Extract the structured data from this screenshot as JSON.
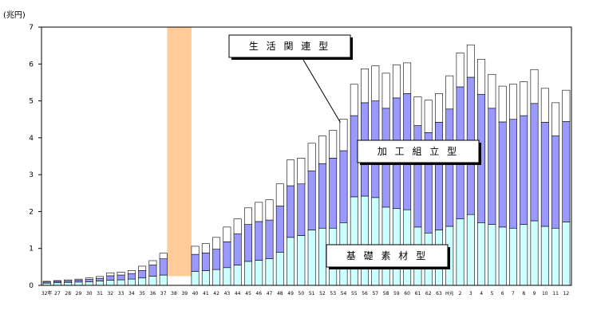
{
  "chart_data": {
    "type": "bar",
    "stacked": true,
    "unit_label": "(兆円)",
    "ylim": [
      0,
      7
    ],
    "yticks": [
      "0",
      "1",
      "2",
      "3",
      "4",
      "5",
      "6",
      "7"
    ],
    "grid": false,
    "legend": "none",
    "categories": [
      "32年",
      "27",
      "28",
      "29",
      "30",
      "31",
      "32",
      "33",
      "34",
      "35",
      "36",
      "37",
      "38",
      "39",
      "40",
      "41",
      "42",
      "43",
      "44",
      "45",
      "46",
      "47",
      "48",
      "49",
      "50",
      "51",
      "52",
      "53",
      "54",
      "55",
      "56",
      "57",
      "58",
      "59",
      "60",
      "61",
      "62",
      "63",
      "H元",
      "2",
      "3",
      "4",
      "5",
      "6",
      "7",
      "8",
      "9",
      "10",
      "11",
      "12"
    ],
    "series": [
      {
        "name": "基礎素材型",
        "color": "#ccffff",
        "values": [
          0.06,
          0.07,
          0.08,
          0.09,
          0.1,
          0.12,
          0.14,
          0.15,
          0.17,
          0.2,
          0.25,
          0.28,
          null,
          null,
          0.38,
          0.4,
          0.43,
          0.48,
          0.55,
          0.65,
          0.68,
          0.72,
          0.9,
          1.3,
          1.35,
          1.5,
          1.55,
          1.55,
          1.7,
          2.4,
          2.42,
          2.38,
          2.12,
          2.08,
          2.05,
          1.58,
          1.42,
          1.5,
          1.6,
          1.8,
          1.92,
          1.7,
          1.65,
          1.58,
          1.55,
          1.65,
          1.75,
          1.6,
          1.55,
          1.72
        ]
      },
      {
        "name": "加工組立型",
        "color": "#9999ff",
        "values": [
          0.03,
          0.04,
          0.04,
          0.05,
          0.06,
          0.07,
          0.12,
          0.13,
          0.15,
          0.2,
          0.3,
          0.44,
          null,
          null,
          0.46,
          0.48,
          0.55,
          0.7,
          0.85,
          1.0,
          1.05,
          1.05,
          1.25,
          1.4,
          1.4,
          1.6,
          1.75,
          1.9,
          1.95,
          2.2,
          2.53,
          2.62,
          2.68,
          3.0,
          3.15,
          2.75,
          2.72,
          2.92,
          3.18,
          3.58,
          3.72,
          3.48,
          3.15,
          2.85,
          2.95,
          2.95,
          3.18,
          2.82,
          2.5,
          2.72
        ]
      },
      {
        "name": "生活関連型",
        "color": "#ffffff",
        "values": [
          0.02,
          0.02,
          0.03,
          0.03,
          0.04,
          0.05,
          0.08,
          0.08,
          0.08,
          0.12,
          0.12,
          0.15,
          null,
          null,
          0.22,
          0.25,
          0.32,
          0.4,
          0.4,
          0.45,
          0.52,
          0.55,
          0.6,
          0.7,
          0.7,
          0.75,
          0.75,
          0.75,
          0.85,
          0.85,
          0.92,
          0.95,
          0.95,
          0.9,
          0.83,
          0.78,
          0.88,
          0.78,
          0.9,
          0.92,
          0.88,
          0.95,
          0.92,
          0.97,
          0.95,
          0.92,
          0.92,
          0.92,
          0.9,
          0.85
        ]
      }
    ],
    "highlight": {
      "from_category": "38",
      "to_category": "39",
      "color": "#ffcc99"
    },
    "annotations": [
      {
        "text": "生 活 関 連 型",
        "target": "生活関連型",
        "pointer": true
      },
      {
        "text": "加 工 組 立 型",
        "target": "加工組立型",
        "pointer": false
      },
      {
        "text": "基 礎 素 材 型",
        "target": "基礎素材型",
        "pointer": false
      }
    ]
  }
}
